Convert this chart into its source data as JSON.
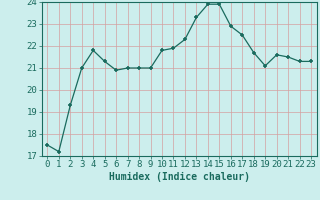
{
  "x": [
    0,
    1,
    2,
    3,
    4,
    5,
    6,
    7,
    8,
    9,
    10,
    11,
    12,
    13,
    14,
    15,
    16,
    17,
    18,
    19,
    20,
    21,
    22,
    23
  ],
  "y": [
    17.5,
    17.2,
    19.3,
    21.0,
    21.8,
    21.3,
    20.9,
    21.0,
    21.0,
    21.0,
    21.8,
    21.9,
    22.3,
    23.3,
    23.9,
    23.9,
    22.9,
    22.5,
    21.7,
    21.1,
    21.6,
    21.5,
    21.3,
    21.3
  ],
  "line_color": "#1a6b5e",
  "marker": "+",
  "marker_size": 3.5,
  "bg_color": "#cceeed",
  "grid_color": "#b8d8d8",
  "xlabel": "Humidex (Indice chaleur)",
  "ylim": [
    17,
    24
  ],
  "yticks": [
    17,
    18,
    19,
    20,
    21,
    22,
    23,
    24
  ],
  "xlim": [
    -0.5,
    23.5
  ],
  "xticks": [
    0,
    1,
    2,
    3,
    4,
    5,
    6,
    7,
    8,
    9,
    10,
    11,
    12,
    13,
    14,
    15,
    16,
    17,
    18,
    19,
    20,
    21,
    22,
    23
  ],
  "label_fontsize": 7,
  "tick_fontsize": 6.5
}
